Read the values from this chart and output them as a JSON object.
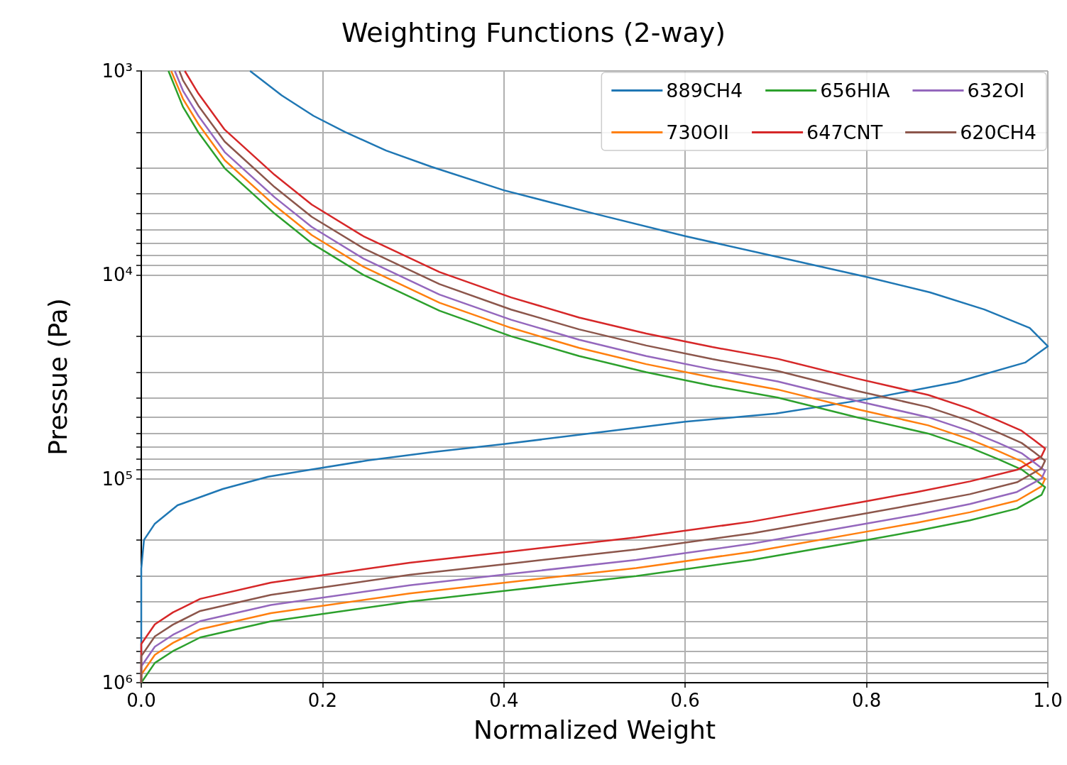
{
  "chart_data": {
    "type": "line",
    "title": "Weighting Functions (2-way)",
    "xlabel": "Normalized Weight",
    "ylabel": "Pressue (Pa)",
    "xlim": [
      0,
      1
    ],
    "xticks": [
      {
        "value": 0,
        "label": "0.0"
      },
      {
        "value": 0.2,
        "label": "0.2"
      },
      {
        "value": 0.4,
        "label": "0.4"
      },
      {
        "value": 0.6,
        "label": "0.6"
      },
      {
        "value": 0.8,
        "label": "0.8"
      },
      {
        "value": 1,
        "label": "1.0"
      }
    ],
    "ylim": [
      1000000,
      1000
    ],
    "log": "y",
    "grid": true,
    "legend": "top right",
    "yticks": [
      {
        "value": 1000,
        "label": "10³"
      },
      {
        "value": 2000,
        "label": null
      },
      {
        "value": 3000,
        "label": null
      },
      {
        "value": 4000,
        "label": null
      },
      {
        "value": 5000,
        "label": null
      },
      {
        "value": 6000,
        "label": null
      },
      {
        "value": 7000,
        "label": null
      },
      {
        "value": 8000,
        "label": null
      },
      {
        "value": 9000,
        "label": null
      },
      {
        "value": 10000,
        "label": "10⁴"
      },
      {
        "value": 20000,
        "label": null
      },
      {
        "value": 30000,
        "label": null
      },
      {
        "value": 40000,
        "label": null
      },
      {
        "value": 50000,
        "label": null
      },
      {
        "value": 60000,
        "label": null
      },
      {
        "value": 70000,
        "label": null
      },
      {
        "value": 80000,
        "label": null
      },
      {
        "value": 90000,
        "label": null
      },
      {
        "value": 100000,
        "label": "10⁵"
      },
      {
        "value": 200000,
        "label": null
      },
      {
        "value": 300000,
        "label": null
      },
      {
        "value": 400000,
        "label": null
      },
      {
        "value": 500000,
        "label": null
      },
      {
        "value": 600000,
        "label": null
      },
      {
        "value": 700000,
        "label": null
      },
      {
        "value": 800000,
        "label": null
      },
      {
        "value": 900000,
        "label": null
      },
      {
        "value": 1000000,
        "label": "10⁶"
      }
    ],
    "series": [
      {
        "name": "889CH4",
        "color": "#1f77b4",
        "x": [
          0.12,
          0.155,
          0.19,
          0.225,
          0.27,
          0.32,
          0.4,
          0.5,
          0.6,
          0.7,
          0.8,
          0.87,
          0.93,
          0.98,
          1.0,
          0.975,
          0.9,
          0.8,
          0.7,
          0.6,
          0.5,
          0.4,
          0.32,
          0.25,
          0.18,
          0.14,
          0.09,
          0.04,
          0.015,
          0.003,
          0,
          0
        ],
        "values": [
          1000,
          1318,
          1660,
          1995,
          2455,
          2951,
          3846,
          5012,
          6457,
          8128,
          10230,
          12190,
          14790,
          18200,
          22390,
          26920,
          33500,
          40740,
          47860,
          52480,
          59570,
          67610,
          74130,
          81280,
          91200,
          97720,
          112200,
          134900,
          166000,
          199500,
          275400,
          1000000
        ]
      },
      {
        "name": "730OII",
        "color": "#ff7f0e",
        "x": [
          0.033,
          0.046,
          0.063,
          0.092,
          0.147,
          0.188,
          0.245,
          0.329,
          0.408,
          0.483,
          0.557,
          0.63,
          0.702,
          0.79,
          0.868,
          0.913,
          0.945,
          0.971,
          0.985,
          0.997,
          0.993,
          0.966,
          0.914,
          0.856,
          0.799,
          0.674,
          0.546,
          0.412,
          0.296,
          0.143,
          0.065,
          0.035,
          0.015,
          0,
          0
        ],
        "values": [
          1000,
          1370,
          1820,
          2740,
          4560,
          6380,
          9120,
          13700,
          18200,
          22800,
          27400,
          31900,
          36500,
          45600,
          54700,
          63800,
          73000,
          82100,
          91200,
          100000,
          109000,
          128000,
          146000,
          164000,
          182000,
          228000,
          274000,
          319000,
          365000,
          456000,
          547000,
          638000,
          730000,
          912000,
          1000000
        ]
      },
      {
        "name": "656HIA",
        "color": "#2ca02c",
        "x": [
          0.03,
          0.046,
          0.063,
          0.092,
          0.147,
          0.188,
          0.245,
          0.329,
          0.408,
          0.483,
          0.557,
          0.63,
          0.702,
          0.79,
          0.868,
          0.913,
          0.945,
          0.971,
          0.985,
          0.997,
          0.993,
          0.966,
          0.914,
          0.856,
          0.799,
          0.674,
          0.546,
          0.412,
          0.296,
          0.143,
          0.065,
          0.035,
          0.015,
          0
        ],
        "values": [
          1000,
          1500,
          2000,
          3000,
          5000,
          7000,
          10000,
          15000,
          20000,
          25000,
          30000,
          35000,
          40000,
          50000,
          60000,
          70000,
          80000,
          90000,
          100000,
          110000,
          120000,
          140000,
          160000,
          180000,
          200000,
          250000,
          300000,
          350000,
          400000,
          500000,
          600000,
          700000,
          800000,
          1000000
        ]
      },
      {
        "name": "647CNT",
        "color": "#d62728",
        "x": [
          0.048,
          0.063,
          0.092,
          0.147,
          0.188,
          0.245,
          0.329,
          0.408,
          0.483,
          0.557,
          0.63,
          0.702,
          0.79,
          0.868,
          0.913,
          0.945,
          0.971,
          0.985,
          0.997,
          0.993,
          0.966,
          0.914,
          0.856,
          0.799,
          0.674,
          0.546,
          0.412,
          0.296,
          0.143,
          0.065,
          0.035,
          0.015,
          0,
          0
        ],
        "values": [
          1000,
          1290,
          1940,
          3230,
          4520,
          6460,
          9690,
          12900,
          16200,
          19400,
          22600,
          25800,
          32300,
          38800,
          45200,
          51700,
          58100,
          64600,
          71100,
          77500,
          90400,
          103000,
          116000,
          129000,
          162000,
          194000,
          226000,
          258000,
          323000,
          388000,
          452000,
          517000,
          646000,
          1000000
        ]
      },
      {
        "name": "632OI",
        "color": "#9467bd",
        "x": [
          0.037,
          0.046,
          0.063,
          0.092,
          0.147,
          0.188,
          0.245,
          0.329,
          0.408,
          0.483,
          0.557,
          0.63,
          0.702,
          0.79,
          0.868,
          0.913,
          0.945,
          0.971,
          0.985,
          0.997,
          0.993,
          0.966,
          0.914,
          0.856,
          0.799,
          0.674,
          0.546,
          0.412,
          0.296,
          0.143,
          0.065,
          0.035,
          0.015,
          0,
          0
        ],
        "values": [
          1000,
          1250,
          1660,
          2500,
          4160,
          5820,
          8320,
          12500,
          16600,
          20800,
          25000,
          29100,
          33300,
          41600,
          49900,
          58200,
          66600,
          74900,
          83200,
          91500,
          99800,
          116000,
          133000,
          150000,
          166000,
          208000,
          250000,
          291000,
          333000,
          416000,
          499000,
          582000,
          666000,
          832000,
          1000000
        ]
      },
      {
        "name": "620CH4",
        "color": "#8c564b",
        "x": [
          0.042,
          0.046,
          0.063,
          0.092,
          0.147,
          0.188,
          0.245,
          0.329,
          0.408,
          0.483,
          0.557,
          0.63,
          0.702,
          0.79,
          0.868,
          0.913,
          0.945,
          0.971,
          0.985,
          0.997,
          0.993,
          0.966,
          0.914,
          0.856,
          0.799,
          0.674,
          0.546,
          0.412,
          0.296,
          0.143,
          0.065,
          0.035,
          0.015,
          0,
          0
        ],
        "values": [
          1000,
          1110,
          1480,
          2220,
          3710,
          5190,
          7410,
          11100,
          14800,
          18500,
          22200,
          25900,
          29600,
          37100,
          44500,
          51900,
          59300,
          66700,
          74100,
          81500,
          88900,
          104000,
          119000,
          133000,
          148000,
          185000,
          222000,
          259000,
          296000,
          371000,
          445000,
          519000,
          593000,
          741000,
          1000000
        ]
      }
    ]
  }
}
